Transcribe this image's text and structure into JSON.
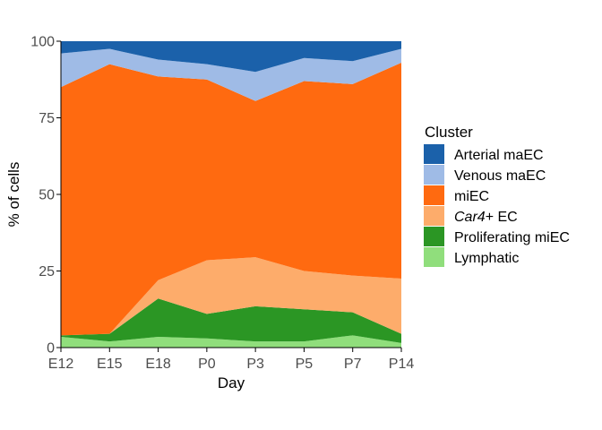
{
  "chart_data": {
    "type": "area",
    "stacked": true,
    "xlabel": "Day",
    "ylabel": "% of cells",
    "ylim": [
      0,
      100
    ],
    "yticks": [
      0,
      25,
      50,
      75,
      100
    ],
    "categories": [
      "E12",
      "E15",
      "E18",
      "P0",
      "P3",
      "P5",
      "P7",
      "P14"
    ],
    "grid": false,
    "legend": {
      "title": "Cluster",
      "placement": "right"
    },
    "series": [
      {
        "name": "Lymphatic",
        "label_main": "Lymphatic",
        "label_suffix": "",
        "italic": false,
        "color": "#90de7c",
        "values": [
          3.5,
          2.0,
          3.5,
          3.0,
          2.0,
          2.0,
          4.0,
          1.5
        ]
      },
      {
        "name": "Proliferating miEC",
        "label_main": "Proliferating miEC",
        "label_suffix": "",
        "italic": false,
        "color": "#2b9624",
        "values": [
          0.5,
          2.5,
          12.5,
          8.0,
          11.5,
          10.5,
          7.5,
          3.0
        ]
      },
      {
        "name": "Car4+ EC",
        "label_main": "Car4",
        "label_suffix": "+ EC",
        "italic": true,
        "color": "#fdac6b",
        "values": [
          0.0,
          0.0,
          6.0,
          17.5,
          16.0,
          12.5,
          12.0,
          18.0
        ]
      },
      {
        "name": "miEC",
        "label_main": "miEC",
        "label_suffix": "",
        "italic": false,
        "color": "#ff6a10",
        "values": [
          81.0,
          88.0,
          66.5,
          59.0,
          51.0,
          62.0,
          62.5,
          70.5
        ]
      },
      {
        "name": "Venous maEC",
        "label_main": "Venous maEC",
        "label_suffix": "",
        "italic": false,
        "color": "#9fbbe6",
        "values": [
          11.0,
          5.0,
          5.5,
          5.0,
          9.5,
          7.5,
          7.5,
          4.5
        ]
      },
      {
        "name": "Arterial maEC",
        "label_main": "Arterial maEC",
        "label_suffix": "",
        "italic": false,
        "color": "#1b61aa",
        "values": [
          4.0,
          2.5,
          6.0,
          7.5,
          10.0,
          5.5,
          6.5,
          2.5
        ]
      }
    ]
  }
}
